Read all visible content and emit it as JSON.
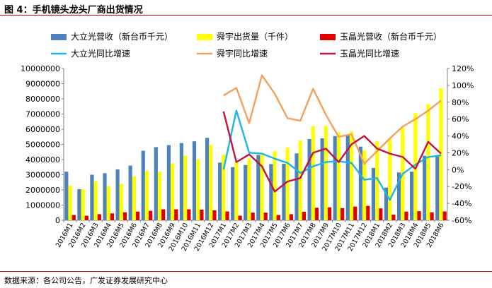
{
  "figure": {
    "title": "图 4：手机镜头龙头厂商出货情况",
    "source": "数据来源：各公司公告，广发证券发展研究中心"
  },
  "colors": {
    "rule": "#c00000",
    "dlg_bar": "#4f81bd",
    "sunny_bar": "#ffff00",
    "yujing_bar": "#e00000",
    "dlg_line": "#1eb4e8",
    "sunny_line": "#f5a05a",
    "yujing_line": "#c0143c"
  },
  "chart_data": {
    "type": "bar",
    "title": "",
    "xlabel": "",
    "ylabel": "",
    "ylim": [
      0,
      10000000
    ],
    "y2lim": [
      -0.6,
      1.2
    ],
    "grid": false,
    "legend_position": "top",
    "categories": [
      "2016M1",
      "2016M2",
      "2016M3",
      "2016M4",
      "2016M5",
      "2016M6",
      "2016M7",
      "2016M8",
      "2016M9",
      "2016M10",
      "2016M11",
      "2016M12",
      "2017M1",
      "2017M2",
      "2017M3",
      "2017M4",
      "2017M5",
      "2017M6",
      "2017M7",
      "2017M8",
      "2017M9",
      "2017M10",
      "2017M11",
      "2017M12",
      "2018M1",
      "2018M2",
      "2018M3",
      "2018M4",
      "2018M5",
      "2018M6"
    ],
    "y_ticks": [
      "0",
      "1000000",
      "2000000",
      "3000000",
      "4000000",
      "5000000",
      "6000000",
      "7000000",
      "8000000",
      "9000000",
      "10000000"
    ],
    "y2_ticks": [
      "-60%",
      "-40%",
      "-20%",
      "0%",
      "20%",
      "40%",
      "60%",
      "80%",
      "100%",
      "120%"
    ],
    "series": [
      {
        "name": "大立光营收（新台币千元）",
        "kind": "bar",
        "axis": "left",
        "values": [
          3200000,
          2050000,
          3000000,
          3100000,
          3350000,
          3600000,
          4580000,
          4820000,
          4950000,
          5080000,
          5200000,
          5430000,
          3800000,
          3500000,
          3640000,
          4300000,
          3700000,
          3720000,
          4400000,
          5350000,
          5400000,
          5550000,
          5600000,
          4850000,
          3450000,
          2150000,
          3150000,
          3200000,
          4250000,
          4280000
        ]
      },
      {
        "name": "舜宇出货量（千件）",
        "kind": "bar",
        "axis": "left",
        "values": [
          2280000,
          2050000,
          2580000,
          2250000,
          2400000,
          2900000,
          3250000,
          3200000,
          3750000,
          4250000,
          4020000,
          4950000,
          4300000,
          3900000,
          4050000,
          4400000,
          4550000,
          4780000,
          5250000,
          6200000,
          6230000,
          5800000,
          5850000,
          4600000,
          5200000,
          5400000,
          6100000,
          7050000,
          7650000,
          8700000
        ]
      },
      {
        "name": "玉晶光营收（新台币千元）",
        "kind": "bar",
        "axis": "left",
        "values": [
          350000,
          300000,
          400000,
          450000,
          520000,
          570000,
          620000,
          720000,
          720000,
          720000,
          700000,
          650000,
          580000,
          300000,
          500000,
          500000,
          350000,
          400000,
          560000,
          820000,
          850000,
          800000,
          900000,
          950000,
          780000,
          370000,
          570000,
          600000,
          520000,
          580000
        ]
      },
      {
        "name": "大立光同比增速",
        "kind": "line",
        "axis": "right",
        "values": [
          null,
          null,
          null,
          null,
          null,
          null,
          null,
          null,
          null,
          null,
          null,
          null,
          0.0,
          0.7,
          0.2,
          0.19,
          0.13,
          0.08,
          -0.04,
          0.04,
          0.09,
          0.1,
          0.08,
          -0.12,
          -0.1,
          -0.36,
          -0.05,
          0.06,
          0.15,
          0.17
        ]
      },
      {
        "name": "舜宇同比增速",
        "kind": "line",
        "axis": "right",
        "values": [
          null,
          null,
          null,
          null,
          null,
          null,
          null,
          null,
          null,
          null,
          null,
          null,
          0.88,
          0.97,
          0.55,
          1.12,
          0.9,
          0.61,
          0.58,
          0.96,
          0.65,
          0.39,
          0.42,
          0.07,
          0.22,
          0.37,
          0.51,
          0.6,
          0.7,
          0.82
        ]
      },
      {
        "name": "玉晶光同比增速",
        "kind": "line",
        "axis": "right",
        "values": [
          null,
          null,
          null,
          null,
          null,
          null,
          null,
          null,
          null,
          null,
          null,
          null,
          0.69,
          0.09,
          0.18,
          0.04,
          -0.26,
          -0.14,
          -0.1,
          0.2,
          0.25,
          0.09,
          0.3,
          0.4,
          0.25,
          0.19,
          0.15,
          0.01,
          0.33,
          0.19
        ]
      }
    ]
  }
}
